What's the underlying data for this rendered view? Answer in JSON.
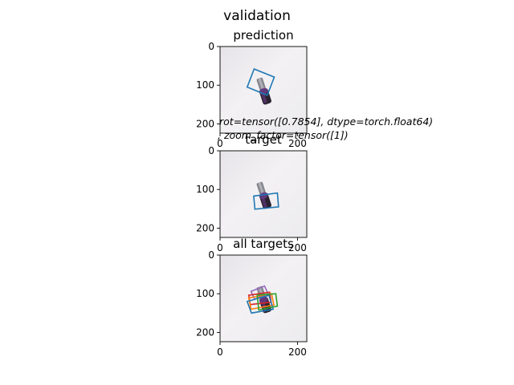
{
  "figure": {
    "suptitle": "validation",
    "annotation_line1": "rot=tensor([0.7854], dtype=torch.float64)",
    "annotation_line2": ", zoom_factor=tensor([1])"
  },
  "colors": {
    "box_blue": "#1f77b4",
    "box_orange": "#ff7f0e",
    "box_green": "#2ca02c",
    "box_red": "#d62728",
    "box_purple": "#9467bd",
    "image_background": "#efedef",
    "object_gray": "#8f8f96",
    "object_dark": "#2a2230",
    "object_purple": "#6a3c88"
  },
  "chart_data": [
    {
      "type": "image",
      "title": "prediction",
      "xlim": [
        0,
        224
      ],
      "ylim": [
        224,
        0
      ],
      "xticks": [
        0,
        200
      ],
      "yticks": [
        0,
        100,
        200
      ],
      "boxes": [
        {
          "color": "blue",
          "corners": [
            [
              88,
              58
            ],
            [
              140,
              79
            ],
            [
              122,
              126
            ],
            [
              70,
              105
            ]
          ]
        }
      ]
    },
    {
      "type": "image",
      "title": "target",
      "xlim": [
        0,
        224
      ],
      "ylim": [
        224,
        0
      ],
      "xticks": [
        0,
        200
      ],
      "yticks": [
        0,
        100,
        200
      ],
      "boxes": [
        {
          "color": "blue",
          "corners": [
            [
              87,
              117
            ],
            [
              148,
              109
            ],
            [
              151,
              145
            ],
            [
              90,
              151
            ]
          ]
        }
      ]
    },
    {
      "type": "image",
      "title": "all targets",
      "xlim": [
        0,
        224
      ],
      "ylim": [
        224,
        0
      ],
      "xticks": [
        0,
        200
      ],
      "yticks": [
        0,
        100,
        200
      ],
      "boxes": [
        {
          "color": "purple",
          "corners": [
            [
              80,
              94
            ],
            [
              115,
              80
            ],
            [
              124,
              100
            ],
            [
              89,
              114
            ]
          ]
        },
        {
          "color": "red",
          "corners": [
            [
              74,
              104
            ],
            [
              128,
              96
            ],
            [
              132,
              122
            ],
            [
              78,
              128
            ]
          ]
        },
        {
          "color": "orange",
          "corners": [
            [
              74,
              111
            ],
            [
              133,
              100
            ],
            [
              139,
              129
            ],
            [
              80,
              140
            ]
          ]
        },
        {
          "color": "blue",
          "corners": [
            [
              70,
              120
            ],
            [
              126,
              104
            ],
            [
              137,
              140
            ],
            [
              81,
              150
            ]
          ]
        },
        {
          "color": "green",
          "corners": [
            [
              96,
              104
            ],
            [
              144,
              100
            ],
            [
              148,
              132
            ],
            [
              100,
              142
            ]
          ]
        }
      ]
    }
  ]
}
